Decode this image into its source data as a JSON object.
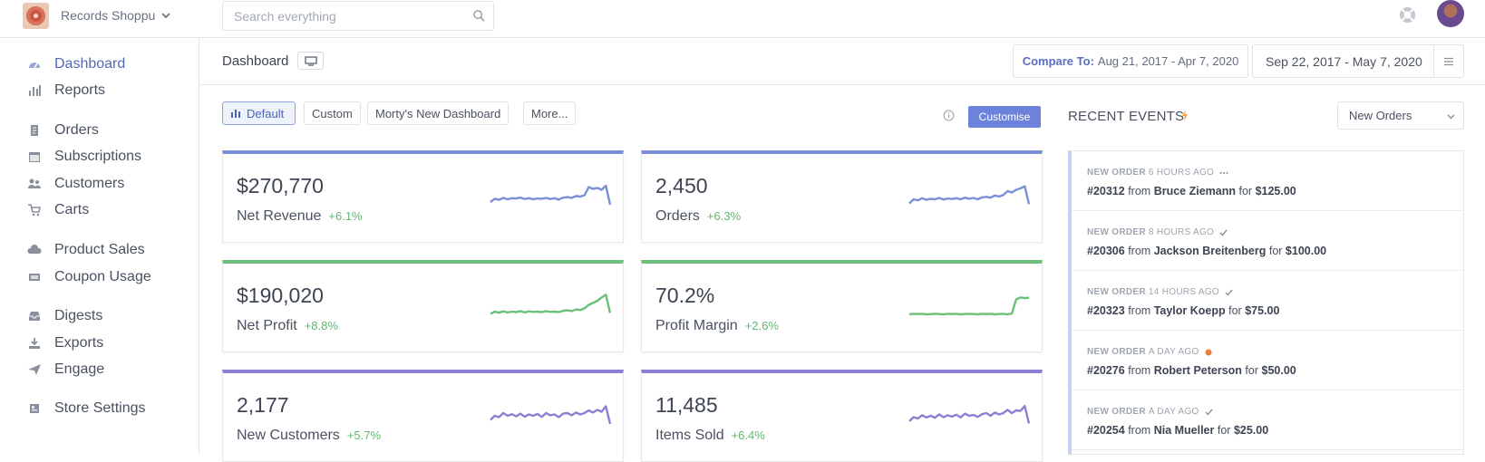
{
  "topbar": {
    "store_name": "Records Shoppu",
    "search_placeholder": "Search everything"
  },
  "sidebar": {
    "items": [
      {
        "label": "Dashboard",
        "icon": "dashboard-icon",
        "active": true
      },
      {
        "label": "Reports",
        "icon": "bar-chart-icon"
      },
      {
        "label": "Orders",
        "icon": "receipt-icon"
      },
      {
        "label": "Subscriptions",
        "icon": "calendar-icon"
      },
      {
        "label": "Customers",
        "icon": "users-icon"
      },
      {
        "label": "Carts",
        "icon": "cart-icon"
      },
      {
        "label": "Product Sales",
        "icon": "cloud-icon"
      },
      {
        "label": "Coupon Usage",
        "icon": "ticket-icon"
      },
      {
        "label": "Digests",
        "icon": "inbox-icon"
      },
      {
        "label": "Exports",
        "icon": "download-icon"
      },
      {
        "label": "Engage",
        "icon": "send-icon"
      },
      {
        "label": "Store Settings",
        "icon": "settings-icon"
      }
    ]
  },
  "header": {
    "title": "Dashboard",
    "compare_label": "Compare To:",
    "compare_value": "Aug 21, 2017 - Apr 7, 2020",
    "date_range": "Sep 22, 2017 - May 7, 2020"
  },
  "tabs": [
    {
      "label": "Default",
      "active": true
    },
    {
      "label": "Custom"
    },
    {
      "label": "Morty's New Dashboard"
    },
    {
      "label": "More..."
    }
  ],
  "customise_label": "Customise",
  "colors": {
    "blue": "#7a8fd6",
    "green": "#6cc07a",
    "purple": "#8c7fd4",
    "positive": "#5fb86f",
    "accent": "#6d83db"
  },
  "metrics": [
    {
      "value": "$270,770",
      "label": "Net Revenue",
      "change": "+6.1%",
      "color": "blue",
      "trend": [
        0.3,
        0.42,
        0.38,
        0.45,
        0.4,
        0.44,
        0.43,
        0.46,
        0.41,
        0.44,
        0.4,
        0.43,
        0.42,
        0.45,
        0.41,
        0.44,
        0.39,
        0.46,
        0.48,
        0.45,
        0.52,
        0.5,
        0.55,
        0.85,
        0.78,
        0.82,
        0.75,
        0.9,
        0.2
      ]
    },
    {
      "value": "2,450",
      "label": "Orders",
      "change": "+6.3%",
      "color": "blue",
      "trend": [
        0.25,
        0.4,
        0.36,
        0.44,
        0.38,
        0.42,
        0.4,
        0.45,
        0.39,
        0.43,
        0.41,
        0.44,
        0.4,
        0.46,
        0.42,
        0.45,
        0.4,
        0.47,
        0.49,
        0.46,
        0.54,
        0.5,
        0.56,
        0.7,
        0.65,
        0.75,
        0.8,
        0.88,
        0.22
      ]
    },
    {
      "value": "$190,020",
      "label": "Net Profit",
      "change": "+8.8%",
      "color": "green",
      "trend": [
        0.22,
        0.3,
        0.26,
        0.31,
        0.27,
        0.3,
        0.28,
        0.32,
        0.27,
        0.31,
        0.29,
        0.3,
        0.28,
        0.32,
        0.29,
        0.3,
        0.28,
        0.33,
        0.35,
        0.32,
        0.38,
        0.36,
        0.42,
        0.55,
        0.62,
        0.7,
        0.82,
        0.92,
        0.25
      ]
    },
    {
      "value": "70.2%",
      "label": "Profit Margin",
      "change": "+2.6%",
      "color": "green",
      "trend": [
        0.2,
        0.22,
        0.21,
        0.22,
        0.2,
        0.21,
        0.22,
        0.21,
        0.2,
        0.22,
        0.21,
        0.22,
        0.2,
        0.21,
        0.22,
        0.21,
        0.2,
        0.22,
        0.21,
        0.22,
        0.2,
        0.21,
        0.22,
        0.2,
        0.23,
        0.75,
        0.82,
        0.8,
        0.81
      ]
    },
    {
      "value": "2,177",
      "label": "New Customers",
      "change": "+5.7%",
      "color": "purple",
      "trend": [
        0.35,
        0.5,
        0.45,
        0.6,
        0.5,
        0.56,
        0.48,
        0.58,
        0.47,
        0.55,
        0.5,
        0.57,
        0.46,
        0.6,
        0.52,
        0.55,
        0.45,
        0.58,
        0.6,
        0.52,
        0.62,
        0.55,
        0.6,
        0.7,
        0.62,
        0.72,
        0.65,
        0.85,
        0.2
      ]
    },
    {
      "value": "11,485",
      "label": "Items Sold",
      "change": "+6.4%",
      "color": "purple",
      "trend": [
        0.3,
        0.45,
        0.4,
        0.52,
        0.44,
        0.5,
        0.43,
        0.55,
        0.45,
        0.52,
        0.47,
        0.54,
        0.44,
        0.58,
        0.5,
        0.53,
        0.46,
        0.56,
        0.6,
        0.5,
        0.62,
        0.55,
        0.6,
        0.72,
        0.6,
        0.7,
        0.68,
        0.86,
        0.22
      ]
    }
  ],
  "events": {
    "title": "RECENT EVENTS",
    "filter": "New Orders",
    "items": [
      {
        "kind": "NEW ORDER",
        "time": "6 HOURS AGO",
        "status": "pending",
        "number": "#20312",
        "customer": "Bruce Ziemann",
        "amount": "$125.00"
      },
      {
        "kind": "NEW ORDER",
        "time": "8 HOURS AGO",
        "status": "done",
        "number": "#20306",
        "customer": "Jackson Breitenberg",
        "amount": "$100.00"
      },
      {
        "kind": "NEW ORDER",
        "time": "14 HOURS AGO",
        "status": "done",
        "number": "#20323",
        "customer": "Taylor Koepp",
        "amount": "$75.00"
      },
      {
        "kind": "NEW ORDER",
        "time": "A DAY AGO",
        "status": "alert",
        "number": "#20276",
        "customer": "Robert Peterson",
        "amount": "$50.00"
      },
      {
        "kind": "NEW ORDER",
        "time": "A DAY AGO",
        "status": "done",
        "number": "#20254",
        "customer": "Nia Mueller",
        "amount": "$25.00"
      }
    ],
    "from_word": "from",
    "for_word": "for"
  }
}
